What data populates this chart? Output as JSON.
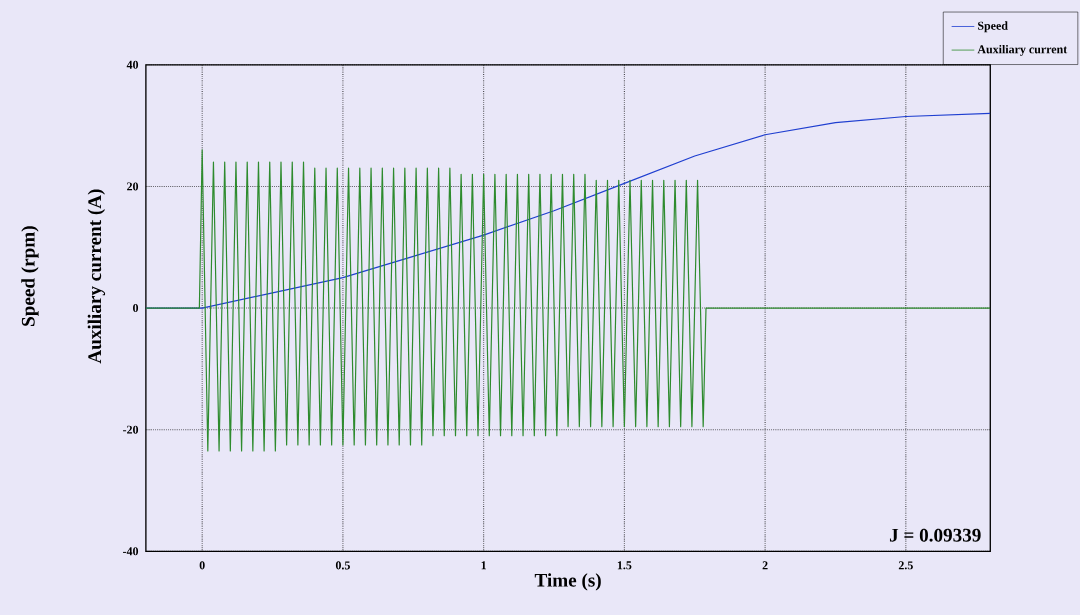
{
  "chart_data": {
    "type": "line",
    "xlabel": "Time (s)",
    "ylabel": "Speed (rpm)",
    "y2label": "Auxiliary current (A)",
    "xlim": [
      -0.2,
      2.8
    ],
    "ylim": [
      -40,
      40
    ],
    "xticks": [
      0,
      0.5,
      1,
      1.5,
      2,
      2.5
    ],
    "yticks": [
      -40,
      -20,
      0,
      20,
      40
    ],
    "grid": true,
    "legend": "top right",
    "annotations": [
      "J = 0.09339"
    ],
    "series": [
      {
        "name": "Speed",
        "color": "#1f3fd0",
        "x": [
          -0.2,
          0,
          0.25,
          0.5,
          0.75,
          1,
          1.25,
          1.5,
          1.75,
          2,
          2.25,
          2.5,
          2.8
        ],
        "values": [
          0,
          0,
          2.5,
          5,
          8.5,
          12,
          16,
          20.5,
          25,
          28.5,
          30.5,
          31.5,
          32
        ]
      },
      {
        "name": "Auxiliary current",
        "color": "#2e8b2e",
        "x": [
          -0.2,
          -0.01,
          0,
          0.02,
          0.04,
          0.06,
          0.08,
          0.1,
          0.12,
          0.14,
          0.16,
          0.18,
          0.2,
          0.22,
          0.24,
          0.26,
          0.28,
          0.3,
          0.32,
          0.34,
          0.36,
          0.38,
          0.4,
          0.42,
          0.44,
          0.46,
          0.48,
          0.5,
          0.52,
          0.54,
          0.56,
          0.58,
          0.6,
          0.62,
          0.64,
          0.66,
          0.68,
          0.7,
          0.72,
          0.74,
          0.76,
          0.78,
          0.8,
          0.82,
          0.84,
          0.86,
          0.88,
          0.9,
          0.92,
          0.94,
          0.96,
          0.98,
          1,
          1.02,
          1.04,
          1.06,
          1.08,
          1.1,
          1.12,
          1.14,
          1.16,
          1.18,
          1.2,
          1.22,
          1.24,
          1.26,
          1.28,
          1.3,
          1.32,
          1.34,
          1.36,
          1.38,
          1.4,
          1.42,
          1.44,
          1.46,
          1.48,
          1.5,
          1.52,
          1.54,
          1.56,
          1.58,
          1.6,
          1.62,
          1.64,
          1.66,
          1.68,
          1.7,
          1.72,
          1.74,
          1.76,
          1.78,
          1.79,
          2.8
        ],
        "values": [
          0,
          0,
          26,
          -23.5,
          24,
          -23.5,
          24,
          -23.5,
          24,
          -23.5,
          24,
          -23.5,
          24,
          -23.5,
          24,
          -23.5,
          24,
          -22.5,
          24,
          -22.5,
          24,
          -22.5,
          23,
          -22.5,
          23,
          -22.5,
          23,
          -22.5,
          23,
          -22.5,
          23,
          -22.5,
          23,
          -22.5,
          23,
          -22.5,
          23,
          -22.5,
          23,
          -22.5,
          23,
          -22.5,
          23,
          -21,
          23,
          -21,
          23,
          -21,
          22,
          -21,
          22,
          -21,
          22,
          -21,
          22,
          -21,
          22,
          -21,
          22,
          -21,
          22,
          -21,
          22,
          -21,
          22,
          -21,
          22,
          -19.5,
          22,
          -19.5,
          22,
          -19.5,
          21,
          -19.5,
          21,
          -19.5,
          21,
          -19.5,
          21,
          -19.5,
          21,
          -19.5,
          21,
          -19.5,
          21,
          -19.5,
          21,
          -19.5,
          21,
          -19.5,
          21,
          -19.5,
          0,
          0
        ]
      }
    ]
  }
}
